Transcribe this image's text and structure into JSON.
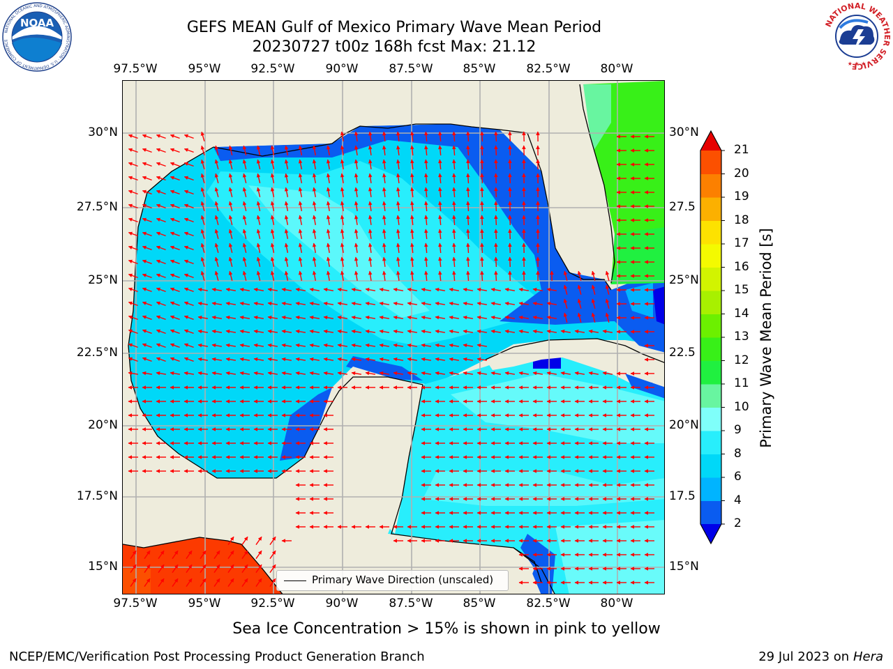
{
  "header": {
    "title_line1": "GEFS MEAN Gulf of Mexico Primary Wave Mean Period",
    "title_line2": "20230727 t00z 168h fcst   Max: 21.12"
  },
  "axes": {
    "lon_labels": [
      "97.5°W",
      "95°W",
      "92.5°W",
      "90°W",
      "87.5°W",
      "85°W",
      "82.5°W",
      "80°W"
    ],
    "lat_labels_left": [
      "30°N",
      "27.5°N",
      "25°N",
      "22.5°N",
      "20°N",
      "17.5°N",
      "15°N"
    ],
    "lat_labels_right": [
      "30°N",
      "27.5",
      "25°N",
      "22.5",
      "20°N",
      "17.5",
      "15°N"
    ]
  },
  "legend": {
    "label": "Primary Wave Direction (unscaled)"
  },
  "colorbar": {
    "title": "Primary Wave Mean Period [s]",
    "tick_labels": [
      "2",
      "4",
      "6",
      "8",
      "9",
      "10",
      "11",
      "12",
      "13",
      "14",
      "15",
      "16",
      "17",
      "18",
      "19",
      "20",
      "21"
    ],
    "colors": [
      "#0a5cf0",
      "#00b4ff",
      "#00d8f8",
      "#28eefc",
      "#7ffffa",
      "#68f5a0",
      "#20f040",
      "#38f018",
      "#6cf000",
      "#a8f000",
      "#d2f400",
      "#f4fa00",
      "#fde200",
      "#fcb000",
      "#fc8000",
      "#fc5000",
      "#f82800"
    ],
    "under_color": "#0000e8",
    "over_color": "#e60000"
  },
  "note": "Sea Ice Concentration > 15% is shown in pink to yellow",
  "footer": {
    "left": "NCEP/EMC/Verification Post Processing Product Generation Branch",
    "date": "29 Jul 2023 on",
    "machine": "Hera"
  },
  "logos": {
    "left": {
      "name": "NOAA",
      "ring_text": "NATIONAL OCEANIC AND ATMOSPHERIC ADMINISTRATION · U.S. DEPARTMENT OF COMMERCE"
    },
    "right": {
      "ring_text": "NATIONAL WEATHER SERVICE"
    }
  },
  "colors": {
    "land": "#eeecdc",
    "grid": "#b0b0b0",
    "arrow": "#ff0000"
  }
}
